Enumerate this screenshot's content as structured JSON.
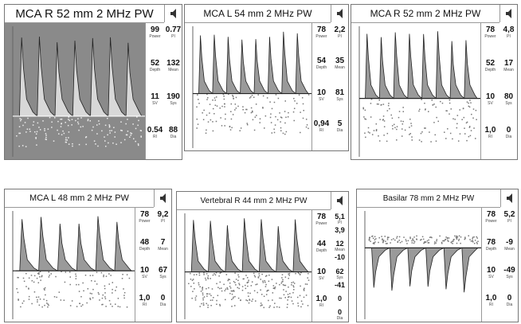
{
  "panels": [
    {
      "title": "MCA R 52 mm 2 MHz PW",
      "left": [
        {
          "value": "99",
          "label": "Power"
        },
        {
          "value": "52",
          "label": "Depth"
        },
        {
          "value": "11",
          "label": "SV"
        },
        {
          "value": "0.54",
          "label": "RI"
        }
      ],
      "right": [
        {
          "value": "0.77",
          "label": "PI"
        },
        {
          "value": "132",
          "label": "Mean"
        },
        {
          "value": "190",
          "label": "Sys"
        },
        {
          "value": "88",
          "label": "Dia"
        }
      ]
    },
    {
      "title": "MCA L 54 mm 2 MHz PW",
      "left": [
        {
          "value": "78",
          "label": "Power"
        },
        {
          "value": "54",
          "label": "Depth"
        },
        {
          "value": "10",
          "label": "SV"
        },
        {
          "value": "0,94",
          "label": "RI"
        }
      ],
      "right": [
        {
          "value": "2,2",
          "label": "PI"
        },
        {
          "value": "35",
          "label": "Mean"
        },
        {
          "value": "81",
          "label": "Sys"
        },
        {
          "value": "5",
          "label": "Dia"
        }
      ]
    },
    {
      "title": "MCA R 52 mm 2 MHz PW",
      "left": [
        {
          "value": "78",
          "label": "Power"
        },
        {
          "value": "52",
          "label": "Depth"
        },
        {
          "value": "10",
          "label": "SV"
        },
        {
          "value": "1,0",
          "label": "RI"
        }
      ],
      "right": [
        {
          "value": "4,8",
          "label": "PI"
        },
        {
          "value": "17",
          "label": "Mean"
        },
        {
          "value": "80",
          "label": "Sys"
        },
        {
          "value": "0",
          "label": "Dia"
        }
      ]
    },
    {
      "title": "MCA L 48 mm 2 MHz PW",
      "left": [
        {
          "value": "78",
          "label": "Power"
        },
        {
          "value": "48",
          "label": "Depth"
        },
        {
          "value": "10",
          "label": "SV"
        },
        {
          "value": "1,0",
          "label": "RI"
        }
      ],
      "right": [
        {
          "value": "9,2",
          "label": "PI"
        },
        {
          "value": "7",
          "label": "Mean"
        },
        {
          "value": "67",
          "label": "Sys"
        },
        {
          "value": "0",
          "label": "Dia"
        }
      ]
    },
    {
      "title": "Vertebral R 44 mm 2 MHz PW",
      "left": [
        {
          "value": "78",
          "label": "Power"
        },
        {
          "value": "44",
          "label": "Depth"
        },
        {
          "value": "10",
          "label": "SV"
        },
        {
          "value": "1,0",
          "label": "RI"
        }
      ],
      "right": [
        {
          "value": "5,1",
          "label": "PI"
        },
        {
          "value": "3,9"
        },
        {
          "value": "12",
          "label": "Mean"
        },
        {
          "value": "-10"
        },
        {
          "value": "62",
          "label": "Sys"
        },
        {
          "value": "-41"
        },
        {
          "value": "0"
        },
        {
          "value": "0",
          "label": "Dia"
        }
      ]
    },
    {
      "title": "Basilar 78 mm 2 MHz PW",
      "left": [
        {
          "value": "78",
          "label": "Power"
        },
        {
          "value": "78",
          "label": "Depth"
        },
        {
          "value": "10",
          "label": "SV"
        },
        {
          "value": "1,0",
          "label": "RI"
        }
      ],
      "right": [
        {
          "value": "5,2",
          "label": "PI"
        },
        {
          "value": "-9",
          "label": "Mean"
        },
        {
          "value": "-49",
          "label": "Sys"
        },
        {
          "value": "0",
          "label": "Dia"
        }
      ]
    }
  ]
}
